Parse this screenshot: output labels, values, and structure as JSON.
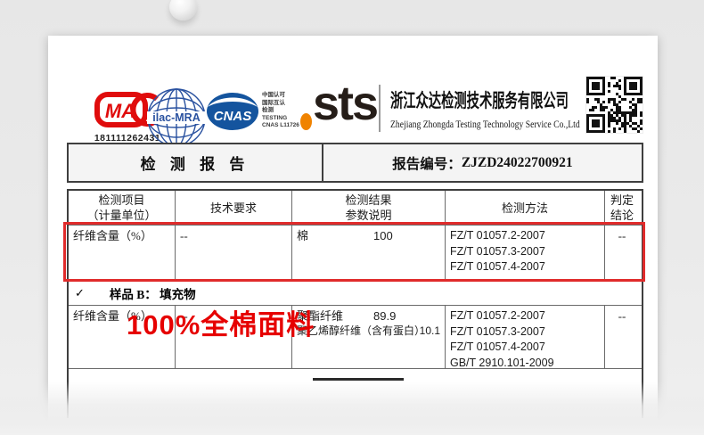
{
  "header": {
    "cma": {
      "label": "MA",
      "number": "181111262431"
    },
    "ilac": {
      "label": "ilac-MRA"
    },
    "cnas": {
      "label": "CNAS",
      "side_text": "中国认可\n国际互认\n检测\nTESTING\nCNAS L11726"
    },
    "sts": {
      "label": "sts"
    },
    "company": {
      "name_cn": "浙江众达检测技术服务有限公司",
      "name_en": "Zhejiang Zhongda Testing Technology Service Co.,Ltd"
    }
  },
  "report_bar": {
    "title": "检 测 报 告",
    "no_label": "报告编号：",
    "no_value": "ZJZD24022700921"
  },
  "table": {
    "headers": {
      "col1a": "检测项目",
      "col1b": "（计量单位）",
      "col2": "技术要求",
      "col3a": "检测结果",
      "col3b": "参数说明",
      "col4": "检测方法",
      "col5a": "判定",
      "col5b": "结论"
    },
    "row1": {
      "item": "纤维含量（%）",
      "requirement": "--",
      "results": [
        {
          "name": "棉",
          "value": "100"
        }
      ],
      "methods": [
        "FZ/T 01057.2-2007",
        "FZ/T 01057.3-2007",
        "FZ/T 01057.4-2007"
      ],
      "verdict": "--"
    },
    "sample_b": {
      "check": "✓",
      "label": "样品 B：  填充物"
    },
    "row2": {
      "item": "纤维含量（%）",
      "requirement": "--",
      "results": [
        {
          "name": "聚酯纤维",
          "value": "89.9"
        },
        {
          "name": "聚乙烯醇纤维（含有蛋白）",
          "value": "10.1"
        }
      ],
      "methods": [
        "FZ/T 01057.2-2007",
        "FZ/T 01057.3-2007",
        "FZ/T 01057.4-2007",
        "GB/T 2910.101-2009"
      ],
      "verdict": "--"
    }
  },
  "annotation": {
    "highlight_text": "100%全棉面料",
    "text_color": "#e60000",
    "box_color": "#e02b2b"
  }
}
